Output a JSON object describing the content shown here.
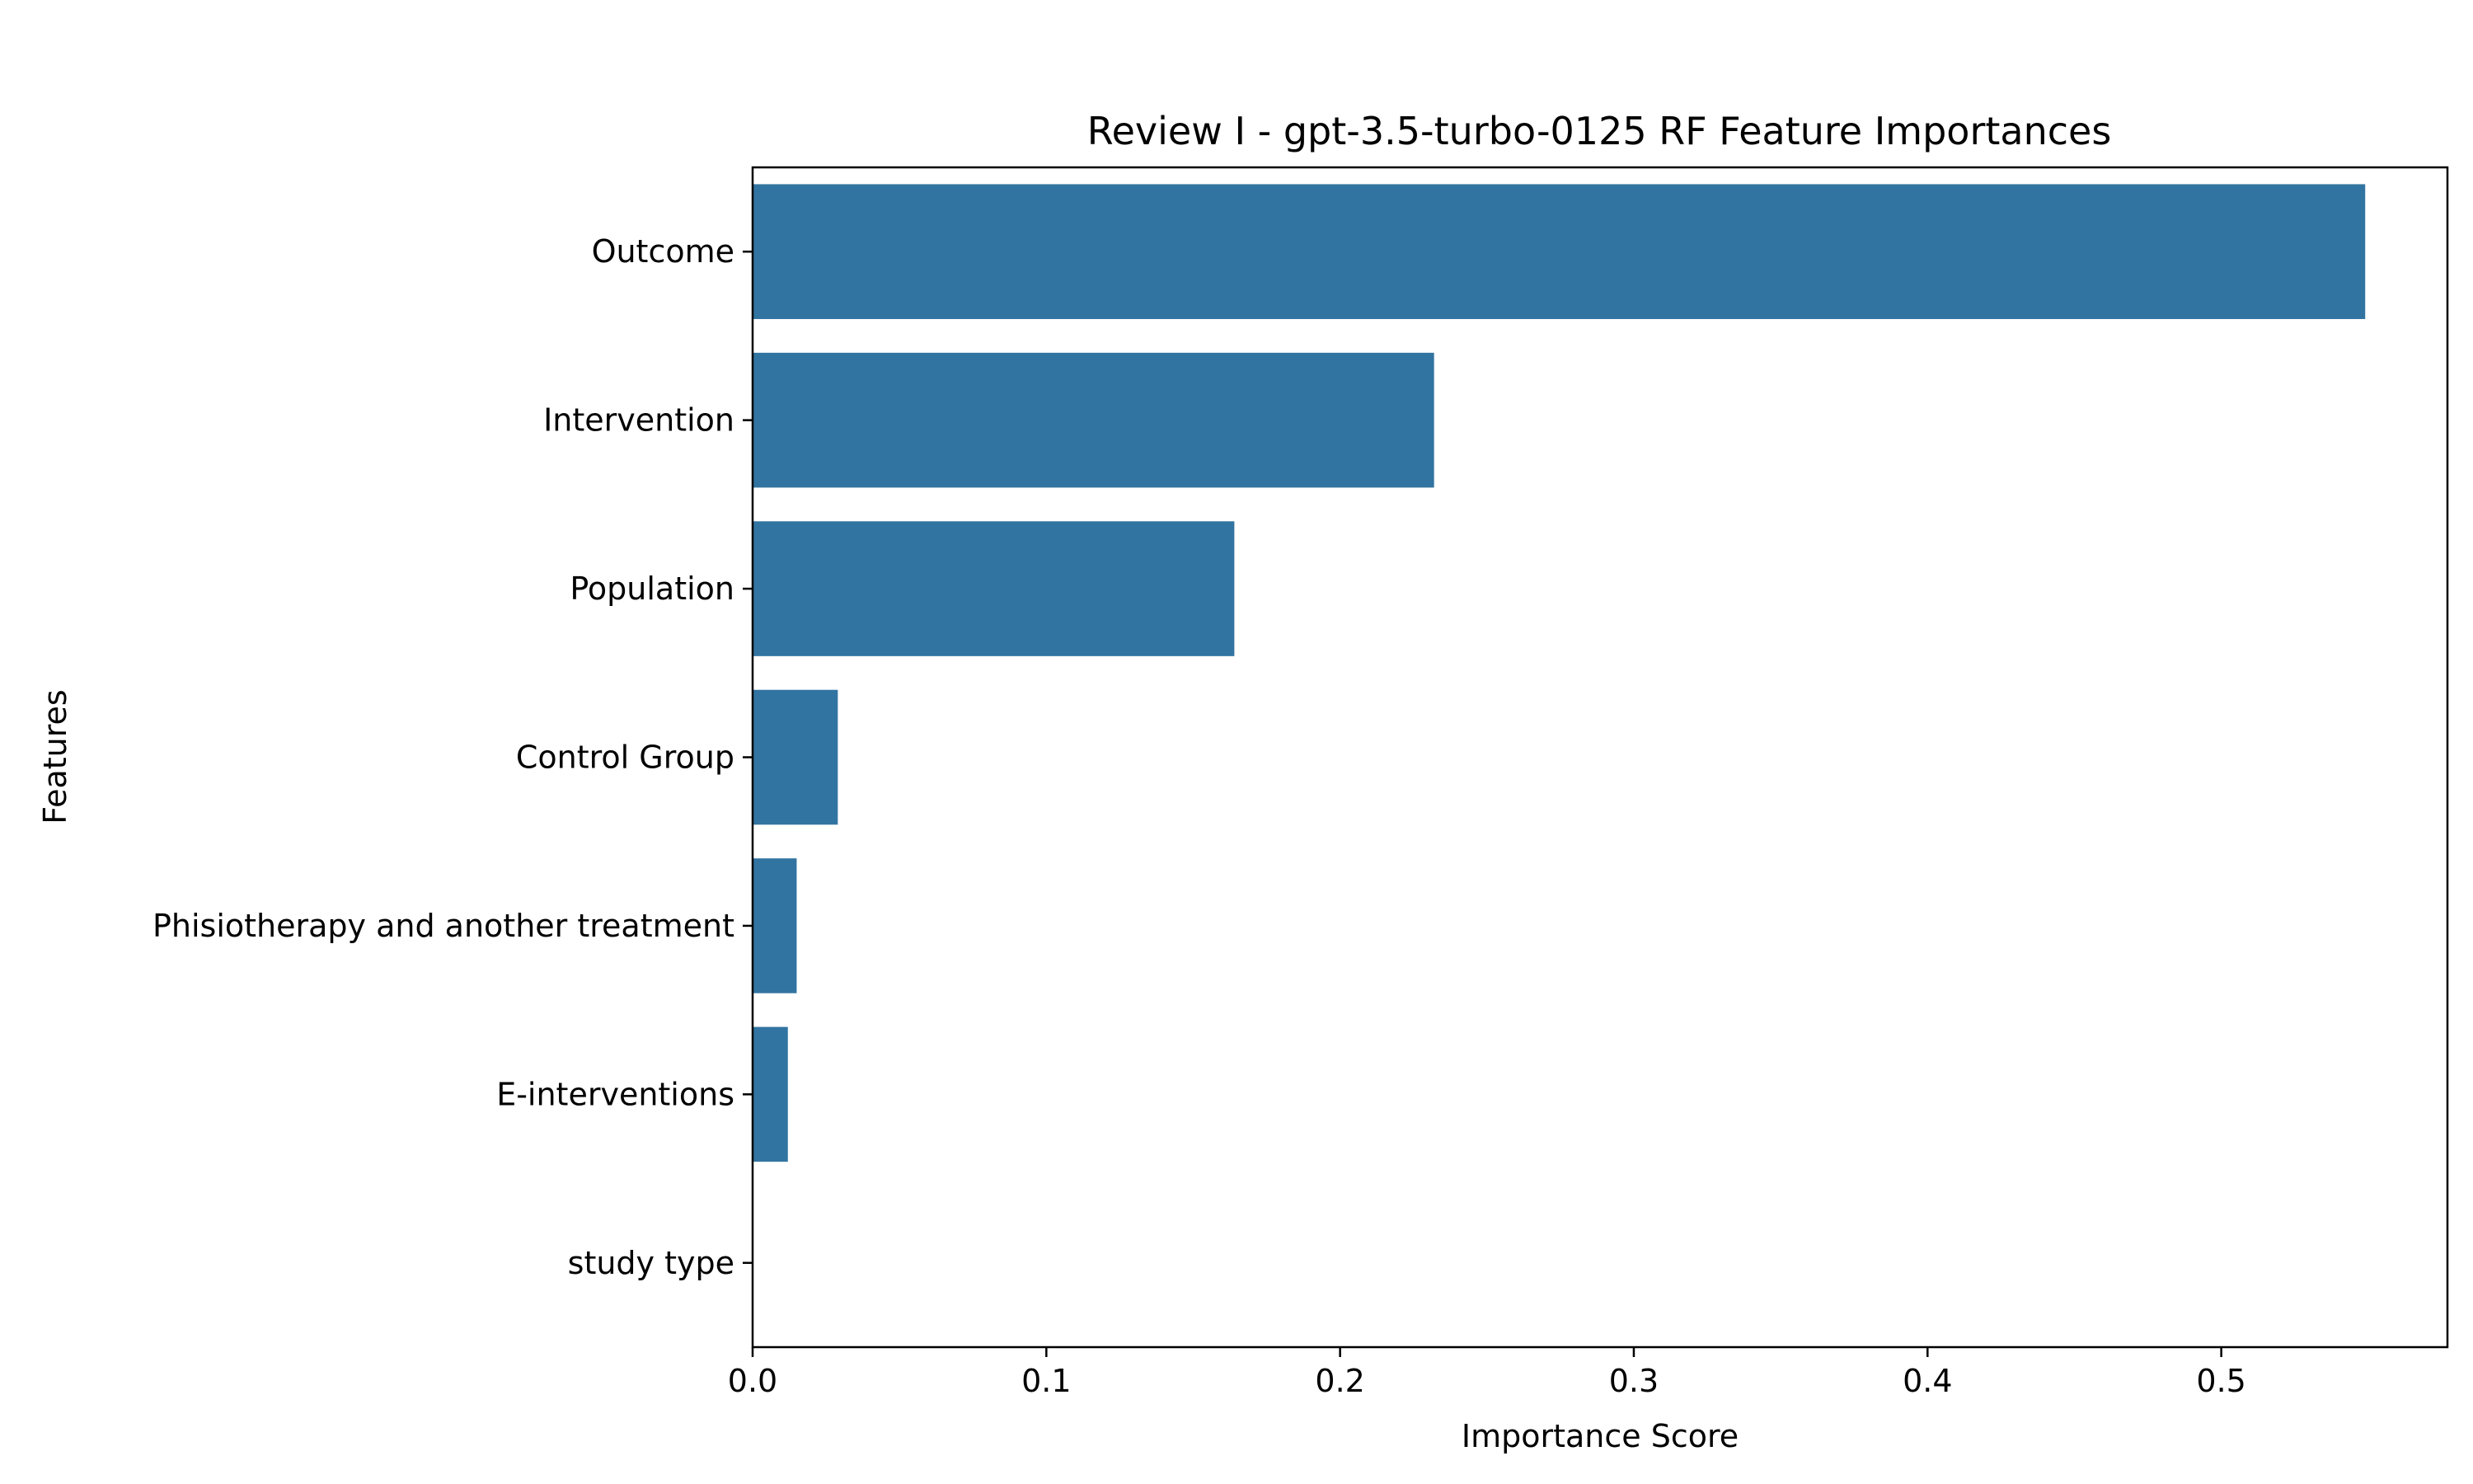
{
  "chart_data": {
    "type": "bar",
    "orientation": "horizontal",
    "title": "Review I - gpt-3.5-turbo-0125 RF Feature Importances",
    "xlabel": "Importance Score",
    "ylabel": "Features",
    "categories": [
      "Outcome",
      "Intervention",
      "Population",
      "Control Group",
      "Phisiotherapy and another treatment",
      "E-interventions",
      "study type"
    ],
    "values": [
      0.549,
      0.232,
      0.164,
      0.029,
      0.015,
      0.012,
      0.0
    ],
    "xlim": [
      0.0,
      0.577
    ],
    "xticks": [
      0.0,
      0.1,
      0.2,
      0.3,
      0.4,
      0.5
    ],
    "xtick_labels": [
      "0.0",
      "0.1",
      "0.2",
      "0.3",
      "0.4",
      "0.5"
    ],
    "bar_color": "#3274a1",
    "grid": false,
    "legend": "none"
  }
}
